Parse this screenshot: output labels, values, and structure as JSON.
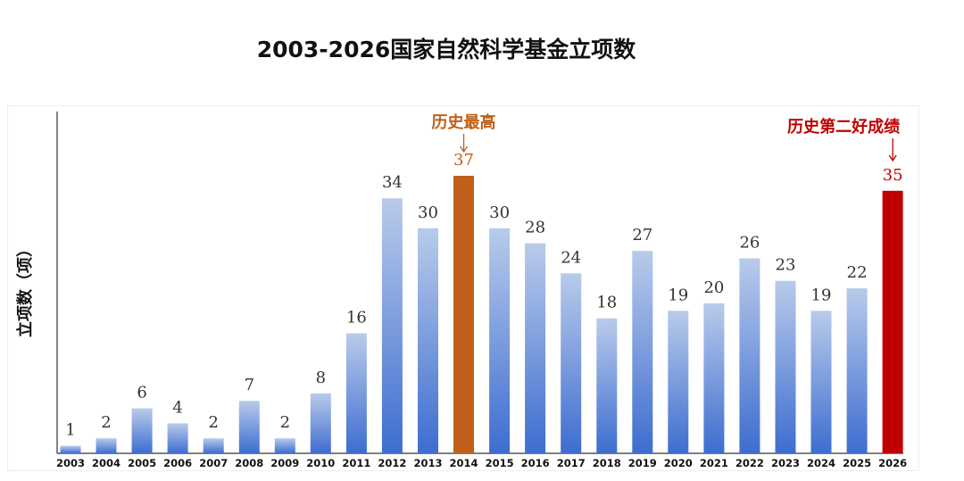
{
  "title": "2003-2026国家自然科学基金立项数",
  "chart_data": {
    "type": "bar",
    "title": "2003-2026国家自然科学基金立项数",
    "xlabel": "",
    "ylabel": "立项数（项）",
    "categories": [
      "2003",
      "2004",
      "2005",
      "2006",
      "2007",
      "2008",
      "2009",
      "2010",
      "2011",
      "2012",
      "2013",
      "2014",
      "2015",
      "2016",
      "2017",
      "2018",
      "2019",
      "2020",
      "2021",
      "2022",
      "2023",
      "2024",
      "2025",
      "2026"
    ],
    "values": [
      1,
      2,
      6,
      4,
      2,
      7,
      2,
      8,
      16,
      34,
      30,
      37,
      30,
      28,
      24,
      18,
      27,
      19,
      20,
      26,
      23,
      19,
      22,
      35
    ],
    "ylim": [
      0,
      46
    ],
    "grid": false,
    "annotations": [
      {
        "category": "2014",
        "text": "历史最高",
        "color": "#c0601a"
      },
      {
        "category": "2026",
        "text": "历史第二好成绩",
        "color": "#c00000"
      }
    ],
    "highlight_colors": {
      "2014": "#c0601a",
      "2026": "#c00000"
    },
    "bar_gradient_top": "#b9cbeb",
    "bar_gradient_bottom": "#3d6dd0"
  }
}
